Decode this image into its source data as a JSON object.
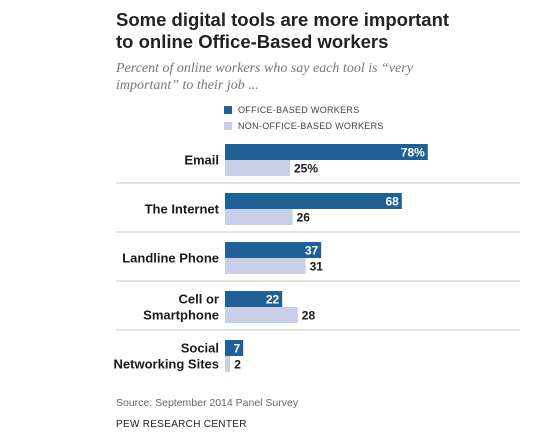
{
  "header": {
    "title_line1": "Some digital tools are more important",
    "title_line2": "to online Office-Based workers",
    "subtitle_line1": "Percent of online workers who say each tool is “very",
    "subtitle_line2": "important” to their job ..."
  },
  "legend": {
    "office_label": "OFFICE-BASED WORKERS",
    "non_office_label": "NON-OFFICE-BASED WORKERS"
  },
  "colors": {
    "office": "#1f6196",
    "non_office": "#c9cfe6",
    "separator": "#c8c8c8"
  },
  "chart_data": {
    "type": "bar",
    "orientation": "horizontal",
    "categories": [
      [
        "Email"
      ],
      [
        "The Internet"
      ],
      [
        "Landline Phone"
      ],
      [
        "Cell or",
        "Smartphone"
      ],
      [
        "Social",
        "Networking Sites"
      ]
    ],
    "series": [
      {
        "name": "OFFICE-BASED WORKERS",
        "values": [
          78,
          68,
          37,
          22,
          7
        ],
        "labels": [
          "78%",
          "68",
          "37",
          "22",
          "7"
        ]
      },
      {
        "name": "NON-OFFICE-BASED WORKERS",
        "values": [
          25,
          26,
          31,
          28,
          2
        ],
        "labels": [
          "25%",
          "26",
          "31",
          "28",
          "2"
        ]
      }
    ],
    "xlim": [
      0,
      100
    ],
    "grid": false,
    "legend_position": "top"
  },
  "footer": {
    "source": "Source: September 2014 Panel Survey",
    "org": "PEW RESEARCH CENTER"
  }
}
